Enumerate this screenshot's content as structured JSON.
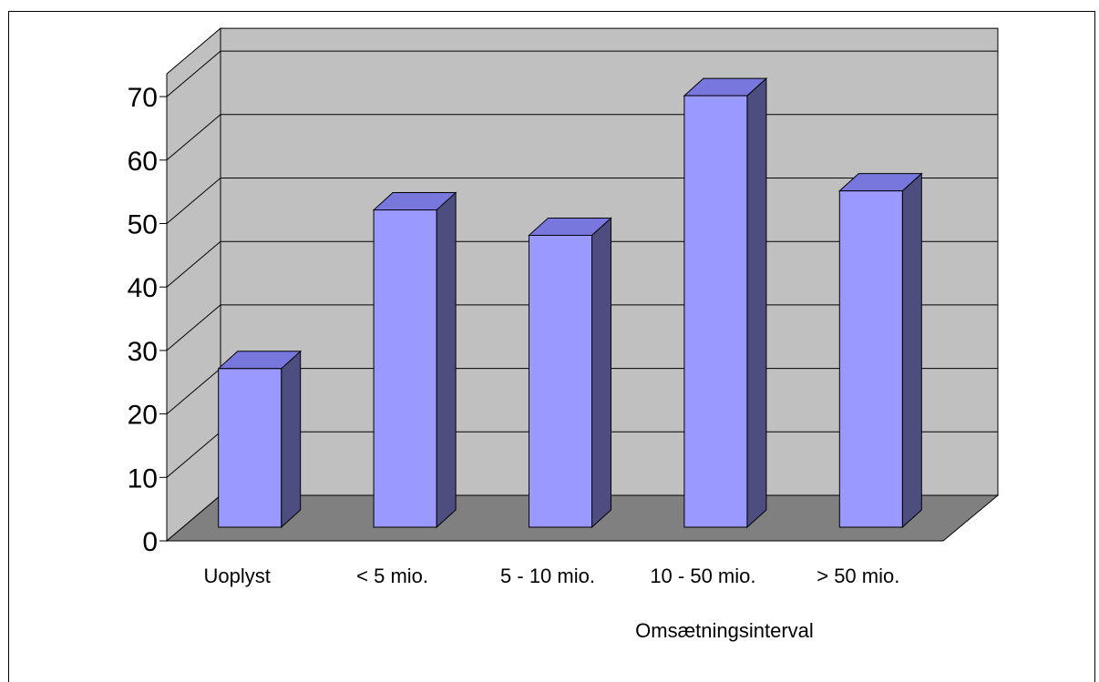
{
  "chart_data": {
    "type": "bar",
    "categories": [
      "Uoplyst",
      "< 5 mio.",
      "5 - 10 mio.",
      "10 - 50 mio.",
      "> 50 mio."
    ],
    "values": [
      27,
      52,
      48,
      70,
      55
    ],
    "title": "",
    "xlabel": "Omsætningsinterval",
    "ylabel": "",
    "ylim": [
      0,
      70
    ],
    "yticks": [
      0,
      10,
      20,
      30,
      40,
      50,
      60,
      70
    ],
    "grid": true,
    "three_d": true
  },
  "colors": {
    "bar_front": "#9999FF",
    "bar_top": "#7777DD",
    "bar_side": "#4D4D80",
    "back_wall": "#C0C0C0",
    "side_wall": "#C0C0C0",
    "floor": "#808080"
  }
}
